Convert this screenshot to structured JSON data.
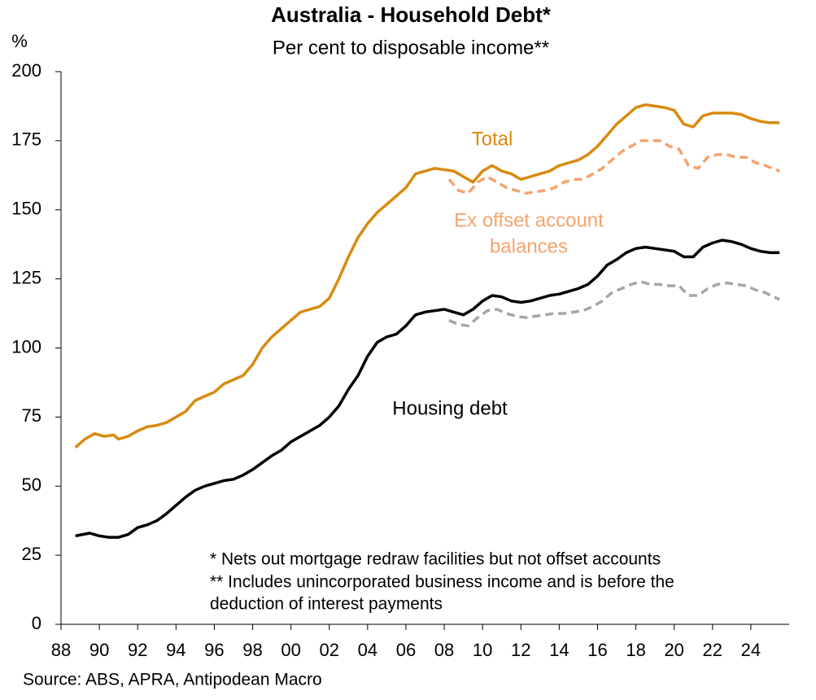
{
  "chart_data": {
    "type": "line",
    "title": "Australia - Household Debt*",
    "subtitle": "Per cent to disposable income**",
    "y_unit": "%",
    "source": "Source: ABS, APRA, Antipodean Macro",
    "notes": [
      "* Nets out mortgage redraw facilities but not offset accounts",
      "** Includes unincorporated business income and is before the",
      "deduction of interest payments"
    ],
    "xlim": [
      1988,
      2026
    ],
    "xticks": [
      {
        "value": 1988,
        "label": "88"
      },
      {
        "value": 1990,
        "label": "90"
      },
      {
        "value": 1992,
        "label": "92"
      },
      {
        "value": 1994,
        "label": "94"
      },
      {
        "value": 1996,
        "label": "96"
      },
      {
        "value": 1998,
        "label": "98"
      },
      {
        "value": 2000,
        "label": "00"
      },
      {
        "value": 2002,
        "label": "02"
      },
      {
        "value": 2004,
        "label": "04"
      },
      {
        "value": 2006,
        "label": "06"
      },
      {
        "value": 2008,
        "label": "08"
      },
      {
        "value": 2010,
        "label": "10"
      },
      {
        "value": 2012,
        "label": "12"
      },
      {
        "value": 2014,
        "label": "14"
      },
      {
        "value": 2016,
        "label": "16"
      },
      {
        "value": 2018,
        "label": "18"
      },
      {
        "value": 2020,
        "label": "20"
      },
      {
        "value": 2022,
        "label": "22"
      },
      {
        "value": 2024,
        "label": "24"
      }
    ],
    "ylim": [
      0,
      200
    ],
    "yticks": [
      0,
      25,
      50,
      75,
      100,
      125,
      150,
      175,
      200
    ],
    "series": [
      {
        "name": "Total",
        "color": "#D98A0F",
        "dashed": false,
        "x": [
          1988.75,
          1989.25,
          1989.75,
          1990.25,
          1990.75,
          1991,
          1991.5,
          1992,
          1992.5,
          1993,
          1993.5,
          1994,
          1994.5,
          1995,
          1995.5,
          1996,
          1996.5,
          1997,
          1997.5,
          1998,
          1998.5,
          1999,
          1999.5,
          2000,
          2000.5,
          2001,
          2001.5,
          2002,
          2002.5,
          2003,
          2003.5,
          2004,
          2004.5,
          2005,
          2005.5,
          2006,
          2006.5,
          2007,
          2007.5,
          2008,
          2008.5,
          2009,
          2009.5,
          2010,
          2010.5,
          2011,
          2011.5,
          2012,
          2012.5,
          2013,
          2013.5,
          2014,
          2014.5,
          2015,
          2015.5,
          2016,
          2016.5,
          2017,
          2017.5,
          2018,
          2018.5,
          2019,
          2019.5,
          2020,
          2020.5,
          2021,
          2021.5,
          2022,
          2022.5,
          2023,
          2023.5,
          2024,
          2024.5,
          2025,
          2025.5
        ],
        "values": [
          64,
          67,
          69,
          68,
          68.5,
          67,
          68,
          70,
          71.5,
          72,
          73,
          75,
          77,
          81,
          82.5,
          84,
          87,
          88.5,
          90,
          94,
          100,
          104,
          107,
          110,
          113,
          114,
          115,
          118,
          125,
          133,
          140,
          145,
          149,
          152,
          155,
          158,
          163,
          164,
          165,
          164.5,
          164,
          162,
          160,
          164,
          166,
          164,
          163,
          161,
          162,
          163,
          164,
          166,
          167,
          168,
          170,
          173,
          177,
          181,
          184,
          187,
          188,
          187.5,
          187,
          186,
          181,
          180,
          184,
          185,
          185,
          185,
          184.5,
          183,
          182,
          181.5,
          181.5
        ]
      },
      {
        "label_lines": [
          "Ex offset account",
          "balances"
        ],
        "color": "#F5A36E",
        "dashed": true,
        "x": [
          2008.25,
          2008.75,
          2009.25,
          2009.75,
          2010.25,
          2010.75,
          2011.25,
          2011.75,
          2012.25,
          2012.75,
          2013.25,
          2013.75,
          2014.25,
          2014.75,
          2015.25,
          2015.75,
          2016.25,
          2016.75,
          2017.25,
          2017.75,
          2018.25,
          2018.75,
          2019.25,
          2019.75,
          2020.25,
          2020.75,
          2021.25,
          2021.75,
          2022.25,
          2022.75,
          2023.25,
          2023.75,
          2024.25,
          2024.75,
          2025.5
        ],
        "values": [
          161,
          157,
          156,
          160,
          162,
          160,
          158,
          157,
          156,
          156.5,
          157,
          158,
          160,
          161,
          161,
          163,
          165,
          168,
          171,
          173,
          175,
          175,
          175,
          173,
          172,
          166,
          165,
          169,
          170,
          170,
          169,
          169,
          167,
          166,
          164
        ]
      },
      {
        "name": "Housing debt",
        "color": "#000000",
        "dashed": false,
        "x": [
          1988.75,
          1989.5,
          1990,
          1990.5,
          1991,
          1991.5,
          1992,
          1992.5,
          1993,
          1993.5,
          1994,
          1994.5,
          1995,
          1995.5,
          1996,
          1996.5,
          1997,
          1997.5,
          1998,
          1998.5,
          1999,
          1999.5,
          2000,
          2000.5,
          2001,
          2001.5,
          2002,
          2002.5,
          2003,
          2003.5,
          2004,
          2004.5,
          2005,
          2005.5,
          2006,
          2006.5,
          2007,
          2007.5,
          2008,
          2008.5,
          2009,
          2009.5,
          2010,
          2010.5,
          2011,
          2011.5,
          2012,
          2012.5,
          2013,
          2013.5,
          2014,
          2014.5,
          2015,
          2015.5,
          2016,
          2016.5,
          2017,
          2017.5,
          2018,
          2018.5,
          2019,
          2019.5,
          2020,
          2020.5,
          2021,
          2021.5,
          2022,
          2022.5,
          2023,
          2023.5,
          2024,
          2024.5,
          2025,
          2025.5
        ],
        "values": [
          32,
          33,
          32,
          31.5,
          31.5,
          32.5,
          35,
          36,
          37.5,
          40,
          43,
          46,
          48.5,
          50,
          51,
          52,
          52.5,
          54,
          56,
          58.5,
          61,
          63,
          66,
          68,
          70,
          72,
          75,
          79,
          85,
          90,
          97,
          102,
          104,
          105,
          108,
          112,
          113,
          113.5,
          114,
          113,
          112,
          114,
          117,
          119,
          118.5,
          117,
          116.5,
          117,
          118,
          119,
          119.5,
          120.5,
          121.5,
          123,
          126,
          130,
          132,
          134.5,
          136,
          136.5,
          136,
          135.5,
          135,
          133,
          133,
          136.5,
          138,
          139,
          138.5,
          137.5,
          136,
          135,
          134.5,
          134.5
        ]
      },
      {
        "color": "#A6A6A6",
        "dashed": true,
        "x": [
          2008.25,
          2008.75,
          2009.25,
          2009.75,
          2010.25,
          2010.75,
          2011.25,
          2011.75,
          2012.25,
          2012.75,
          2013.25,
          2013.75,
          2014.25,
          2014.75,
          2015.25,
          2015.75,
          2016.25,
          2016.75,
          2017.25,
          2017.75,
          2018.25,
          2018.75,
          2019.25,
          2019.75,
          2020.25,
          2020.75,
          2021.25,
          2021.75,
          2022.25,
          2022.75,
          2023.25,
          2023.75,
          2024.25,
          2024.75,
          2025.5
        ],
        "values": [
          110,
          108.5,
          108,
          111,
          113.5,
          114,
          112.5,
          111.5,
          111,
          111.5,
          112,
          112.5,
          112.5,
          113,
          113.5,
          115,
          117,
          120,
          121.5,
          123,
          124,
          123,
          123,
          122.5,
          122.5,
          119,
          119,
          121.5,
          123,
          123.5,
          123,
          122.5,
          121,
          120,
          117.5
        ]
      }
    ]
  }
}
